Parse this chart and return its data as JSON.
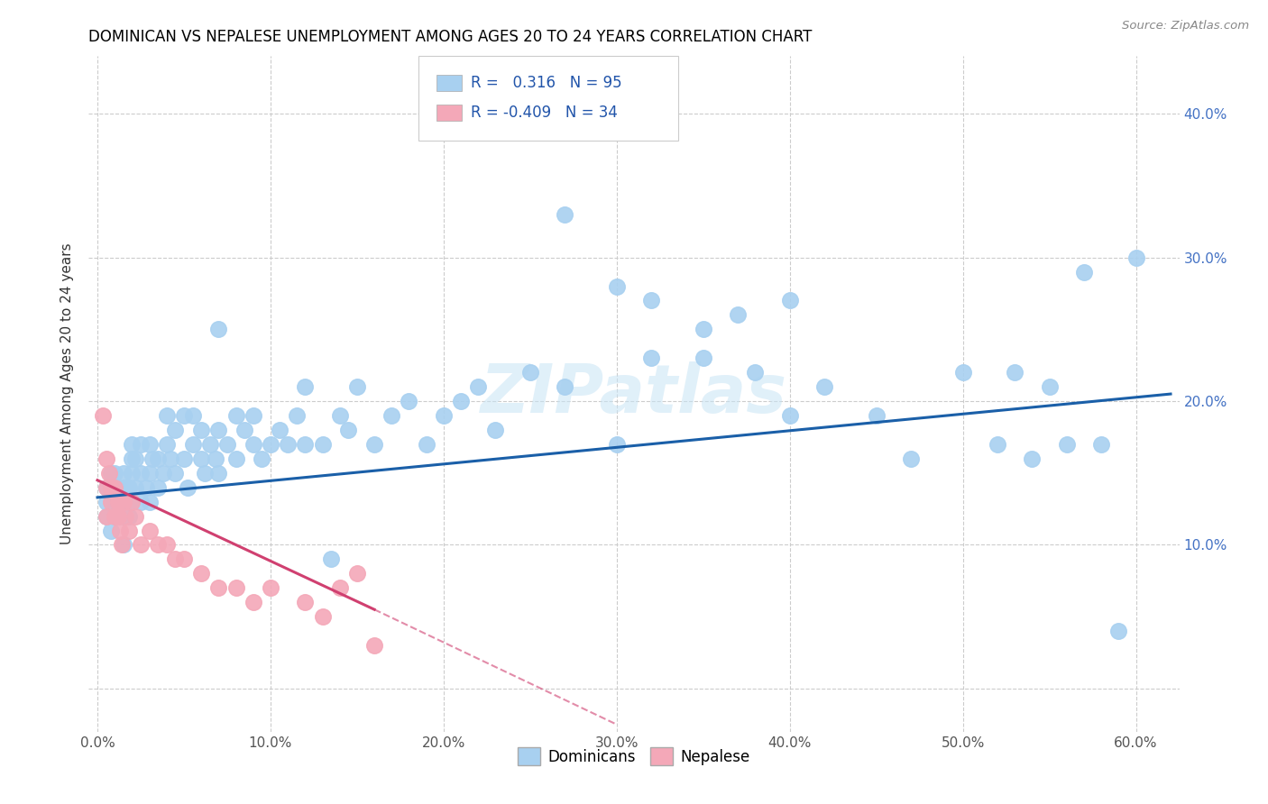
{
  "title": "DOMINICAN VS NEPALESE UNEMPLOYMENT AMONG AGES 20 TO 24 YEARS CORRELATION CHART",
  "source": "Source: ZipAtlas.com",
  "ylabel": "Unemployment Among Ages 20 to 24 years",
  "x_tick_labels": [
    "0.0%",
    "10.0%",
    "20.0%",
    "30.0%",
    "40.0%",
    "50.0%",
    "60.0%"
  ],
  "x_ticks": [
    0.0,
    0.1,
    0.2,
    0.3,
    0.4,
    0.5,
    0.6
  ],
  "y_ticks": [
    0.0,
    0.1,
    0.2,
    0.3,
    0.4
  ],
  "y_tick_labels_right": [
    "",
    "10.0%",
    "20.0%",
    "30.0%",
    "40.0%"
  ],
  "xlim": [
    -0.005,
    0.625
  ],
  "ylim": [
    -0.03,
    0.44
  ],
  "dominican_color": "#a8d0f0",
  "nepalese_color": "#f4a8b8",
  "trend_dominican_color": "#1a5fa8",
  "trend_nepalese_color": "#d04070",
  "R_dominican": 0.316,
  "N_dominican": 95,
  "R_nepalese": -0.409,
  "N_nepalese": 34,
  "watermark": "ZIPatlas",
  "dom_x": [
    0.005,
    0.005,
    0.005,
    0.008,
    0.008,
    0.01,
    0.01,
    0.01,
    0.01,
    0.012,
    0.012,
    0.015,
    0.015,
    0.015,
    0.015,
    0.015,
    0.018,
    0.018,
    0.02,
    0.02,
    0.02,
    0.02,
    0.022,
    0.022,
    0.025,
    0.025,
    0.025,
    0.028,
    0.03,
    0.03,
    0.03,
    0.032,
    0.035,
    0.035,
    0.038,
    0.04,
    0.04,
    0.042,
    0.045,
    0.045,
    0.05,
    0.05,
    0.052,
    0.055,
    0.055,
    0.06,
    0.06,
    0.062,
    0.065,
    0.068,
    0.07,
    0.07,
    0.075,
    0.08,
    0.08,
    0.085,
    0.09,
    0.09,
    0.095,
    0.1,
    0.105,
    0.11,
    0.115,
    0.12,
    0.12,
    0.13,
    0.135,
    0.14,
    0.145,
    0.15,
    0.16,
    0.17,
    0.18,
    0.19,
    0.2,
    0.21,
    0.22,
    0.23,
    0.25,
    0.27,
    0.3,
    0.32,
    0.35,
    0.38,
    0.4,
    0.42,
    0.45,
    0.47,
    0.5,
    0.52,
    0.54,
    0.56,
    0.58,
    0.59,
    0.6
  ],
  "dom_y": [
    0.12,
    0.13,
    0.14,
    0.11,
    0.15,
    0.12,
    0.13,
    0.14,
    0.15,
    0.12,
    0.14,
    0.1,
    0.12,
    0.13,
    0.14,
    0.15,
    0.12,
    0.14,
    0.13,
    0.15,
    0.16,
    0.17,
    0.14,
    0.16,
    0.13,
    0.15,
    0.17,
    0.14,
    0.13,
    0.15,
    0.17,
    0.16,
    0.14,
    0.16,
    0.15,
    0.17,
    0.19,
    0.16,
    0.15,
    0.18,
    0.16,
    0.19,
    0.14,
    0.17,
    0.19,
    0.16,
    0.18,
    0.15,
    0.17,
    0.16,
    0.15,
    0.18,
    0.17,
    0.19,
    0.16,
    0.18,
    0.17,
    0.19,
    0.16,
    0.17,
    0.18,
    0.17,
    0.19,
    0.17,
    0.21,
    0.17,
    0.09,
    0.19,
    0.18,
    0.21,
    0.17,
    0.19,
    0.2,
    0.17,
    0.19,
    0.2,
    0.21,
    0.18,
    0.22,
    0.21,
    0.17,
    0.23,
    0.23,
    0.22,
    0.19,
    0.21,
    0.19,
    0.16,
    0.22,
    0.17,
    0.16,
    0.17,
    0.17,
    0.04,
    0.3
  ],
  "dom_y_outliers": [
    0.33,
    0.28,
    0.27,
    0.25,
    0.25,
    0.26,
    0.27,
    0.29,
    0.21,
    0.22
  ],
  "dom_x_outliers": [
    0.27,
    0.3,
    0.32,
    0.07,
    0.35,
    0.37,
    0.4,
    0.57,
    0.55,
    0.53
  ],
  "nep_x": [
    0.003,
    0.005,
    0.005,
    0.005,
    0.007,
    0.008,
    0.008,
    0.01,
    0.01,
    0.012,
    0.012,
    0.013,
    0.014,
    0.015,
    0.016,
    0.018,
    0.02,
    0.022,
    0.025,
    0.03,
    0.035,
    0.04,
    0.045,
    0.05,
    0.06,
    0.07,
    0.08,
    0.09,
    0.1,
    0.12,
    0.13,
    0.14,
    0.15,
    0.16
  ],
  "nep_y": [
    0.19,
    0.16,
    0.14,
    0.12,
    0.15,
    0.14,
    0.13,
    0.14,
    0.12,
    0.13,
    0.12,
    0.11,
    0.1,
    0.13,
    0.12,
    0.11,
    0.13,
    0.12,
    0.1,
    0.11,
    0.1,
    0.1,
    0.09,
    0.09,
    0.08,
    0.07,
    0.07,
    0.06,
    0.07,
    0.06,
    0.05,
    0.07,
    0.08,
    0.03
  ],
  "trend_dom_x0": 0.0,
  "trend_dom_x1": 0.62,
  "trend_dom_y0": 0.133,
  "trend_dom_y1": 0.205,
  "trend_nep_x0": 0.0,
  "trend_nep_x1": 0.16,
  "trend_nep_y0": 0.145,
  "trend_nep_y1": 0.055,
  "trend_nep_dash_x1": 0.3,
  "trend_nep_dash_y1": -0.025
}
